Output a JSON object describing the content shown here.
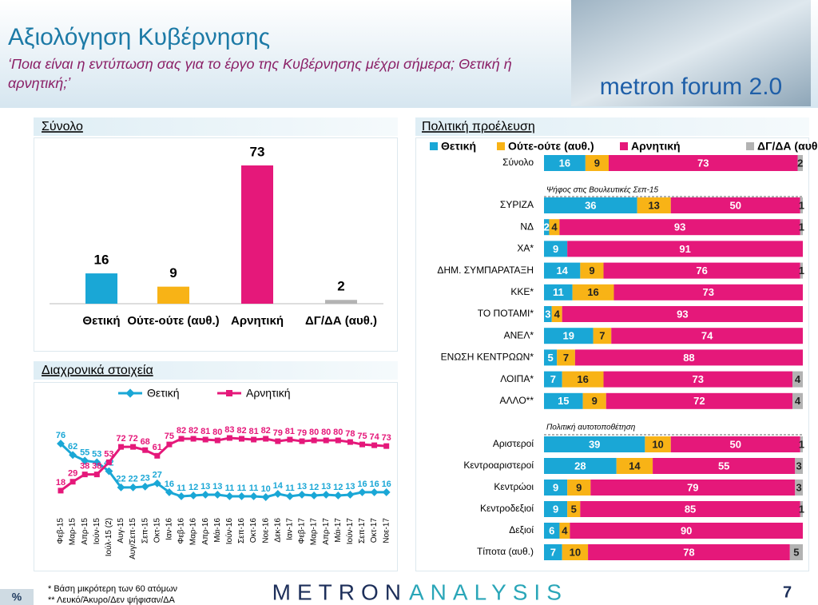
{
  "header": {
    "title": "Αξιολόγηση Κυβέρνησης",
    "subtitle": "‘Ποια είναι η εντύπωση σας για το έργο της Κυβέρνησης μέχρι σήμερα; Θετική ή αρνητική;’",
    "logo": "metron forum 2.0"
  },
  "chart_data": [
    {
      "type": "bar",
      "title": "Σύνολο",
      "categories": [
        "Θετική",
        "Ούτε-ούτε (αυθ.)",
        "Αρνητική",
        "ΔΓ/ΔΑ (αυθ.)"
      ],
      "values": [
        16,
        9,
        73,
        2
      ],
      "colors": [
        "#1aa7d6",
        "#f8b316",
        "#e5187a",
        "#b3b3b3"
      ]
    },
    {
      "type": "line",
      "title": "Διαχρονικά στοιχεία",
      "categories": [
        "Φεβ-15",
        "Μαρ-15",
        "Απρ-15",
        "Ιούν-15",
        "Ιούλ-15 (2)",
        "Αυγ-15",
        "Αυγ/Σεπ-15",
        "Σεπ-15",
        "Οκτ-15",
        "Ιαν-16",
        "Φεβ-16",
        "Μαρ-16",
        "Απρ-16",
        "Μάι-16",
        "Ιούν-16",
        "Σεπ-16",
        "Οκτ-16",
        "Νοε-16",
        "Δεκ-16",
        "Ιαν-17",
        "Φεβ-17",
        "Μαρ-17",
        "Απρ-17",
        "Μάι-17",
        "Ιούν-17",
        "Σεπ-17",
        "Οκτ-17",
        "Νοε-17"
      ],
      "series": [
        {
          "name": "Θετική",
          "color": "#1aa7d6",
          "values": [
            76,
            62,
            55,
            53,
            42,
            22,
            22,
            23,
            27,
            16,
            11,
            12,
            13,
            13,
            11,
            11,
            11,
            10,
            14,
            11,
            13,
            12,
            13,
            12,
            13,
            16,
            16,
            16
          ]
        },
        {
          "name": "Αρνητική",
          "color": "#e5187a",
          "values": [
            18,
            29,
            38,
            38,
            53,
            72,
            72,
            68,
            61,
            75,
            82,
            82,
            81,
            80,
            83,
            82,
            81,
            82,
            79,
            81,
            79,
            80,
            80,
            80,
            78,
            75,
            74,
            73
          ]
        }
      ]
    },
    {
      "type": "stacked_bar_horizontal",
      "title": "Πολιτική προέλευση",
      "annotations": [
        "Ψήφος στις Βουλευτικές Σεπ-15",
        "Πολιτική αυτοτοποθέτηση"
      ],
      "categories": [
        "Σύνολο",
        "ΣΥΡΙΖΑ",
        "ΝΔ",
        "ΧΑ*",
        "ΔΗΜ. ΣΥΜΠΑΡΑΤΑΞΗ",
        "ΚΚΕ*",
        "ΤΟ ΠΟΤΑΜΙ*",
        "ΑΝΕΛ*",
        "ΕΝΩΣΗ ΚΕΝΤΡΩΩΝ*",
        "ΛΟΙΠΑ*",
        "ΑΛΛΟ**",
        "Αριστεροί",
        "Κεντροαριστεροί",
        "Κεντρώοι",
        "Κεντροδεξιοί",
        "Δεξιοί",
        "Τίποτα (αυθ.)"
      ],
      "series": [
        {
          "name": "Θετική",
          "color": "#1aa7d6",
          "values": [
            16,
            36,
            2,
            9,
            14,
            11,
            3,
            19,
            5,
            7,
            15,
            39,
            28,
            9,
            9,
            6,
            7
          ]
        },
        {
          "name": "Ούτε-ούτε (αυθ.)",
          "color": "#f8b316",
          "values": [
            9,
            13,
            4,
            null,
            9,
            16,
            4,
            7,
            7,
            16,
            9,
            10,
            14,
            9,
            5,
            4,
            10
          ]
        },
        {
          "name": "Αρνητική",
          "color": "#e5187a",
          "values": [
            73,
            50,
            93,
            91,
            76,
            73,
            93,
            74,
            88,
            73,
            72,
            50,
            55,
            79,
            85,
            90,
            78
          ]
        },
        {
          "name": "ΔΓ/ΔΑ (αυθ.)",
          "color": "#b3b3b3",
          "values": [
            2,
            1,
            1,
            null,
            1,
            null,
            null,
            null,
            null,
            4,
            4,
            1,
            3,
            3,
            1,
            null,
            5
          ]
        }
      ]
    }
  ],
  "footer": {
    "unit": "%",
    "notes": [
      "*  Βάση μικρότερη των 60 ατόμων",
      "** Λευκό/Άκυρο/Δεν ψήφισαν/ΔΑ"
    ],
    "brand_left": "METRON",
    "brand_right": "ANALYSIS",
    "page": "7"
  }
}
